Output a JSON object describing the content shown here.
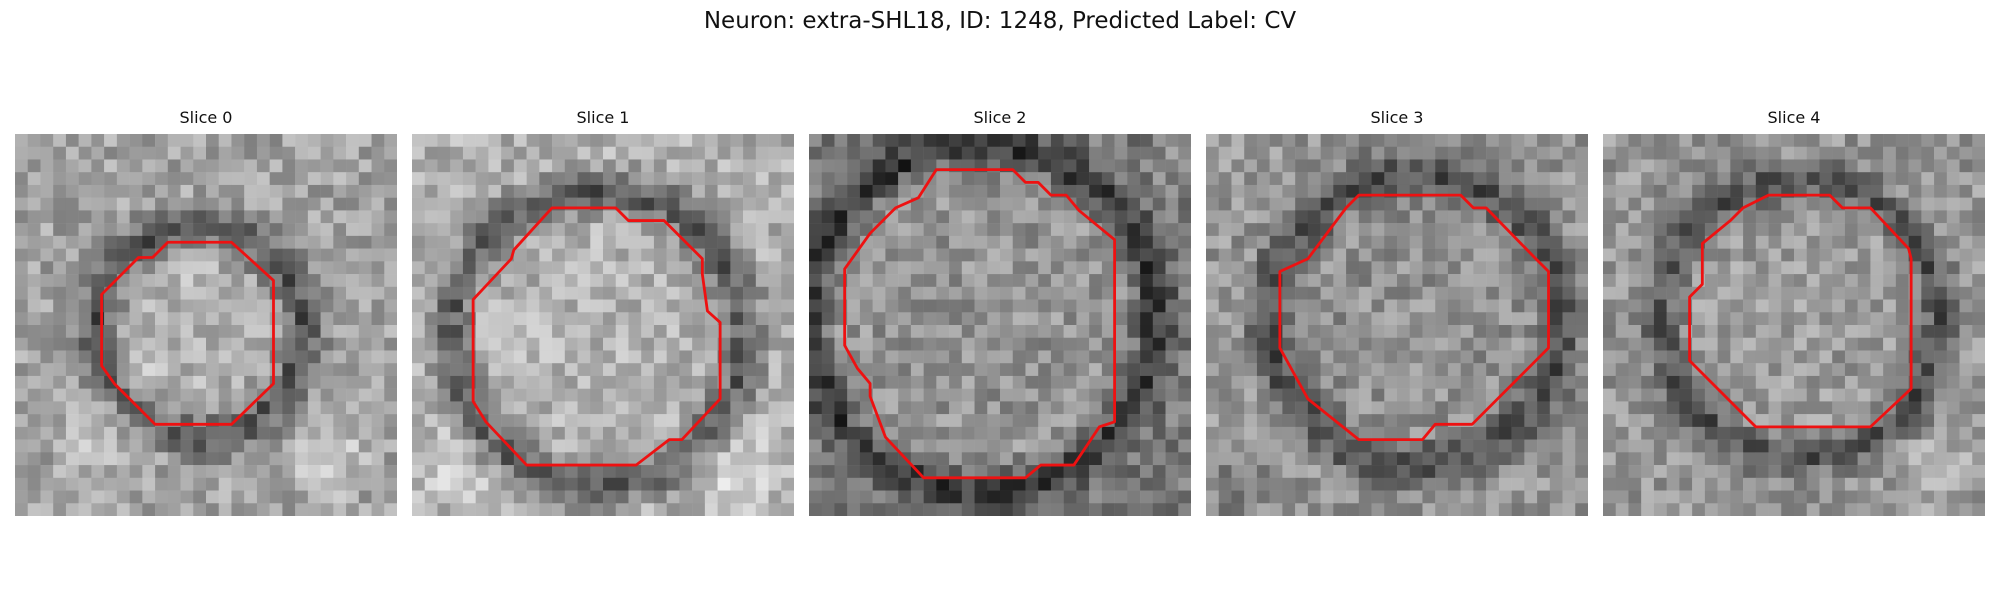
{
  "figure": {
    "title": "Neuron: extra-SHL18, ID: 1248, Predicted Label: CV"
  },
  "outline_color": "#ee1111",
  "panels": [
    {
      "title": "Slice 0"
    },
    {
      "title": "Slice 1"
    },
    {
      "title": "Slice 2"
    },
    {
      "title": "Slice 3"
    },
    {
      "title": "Slice 4"
    }
  ]
}
